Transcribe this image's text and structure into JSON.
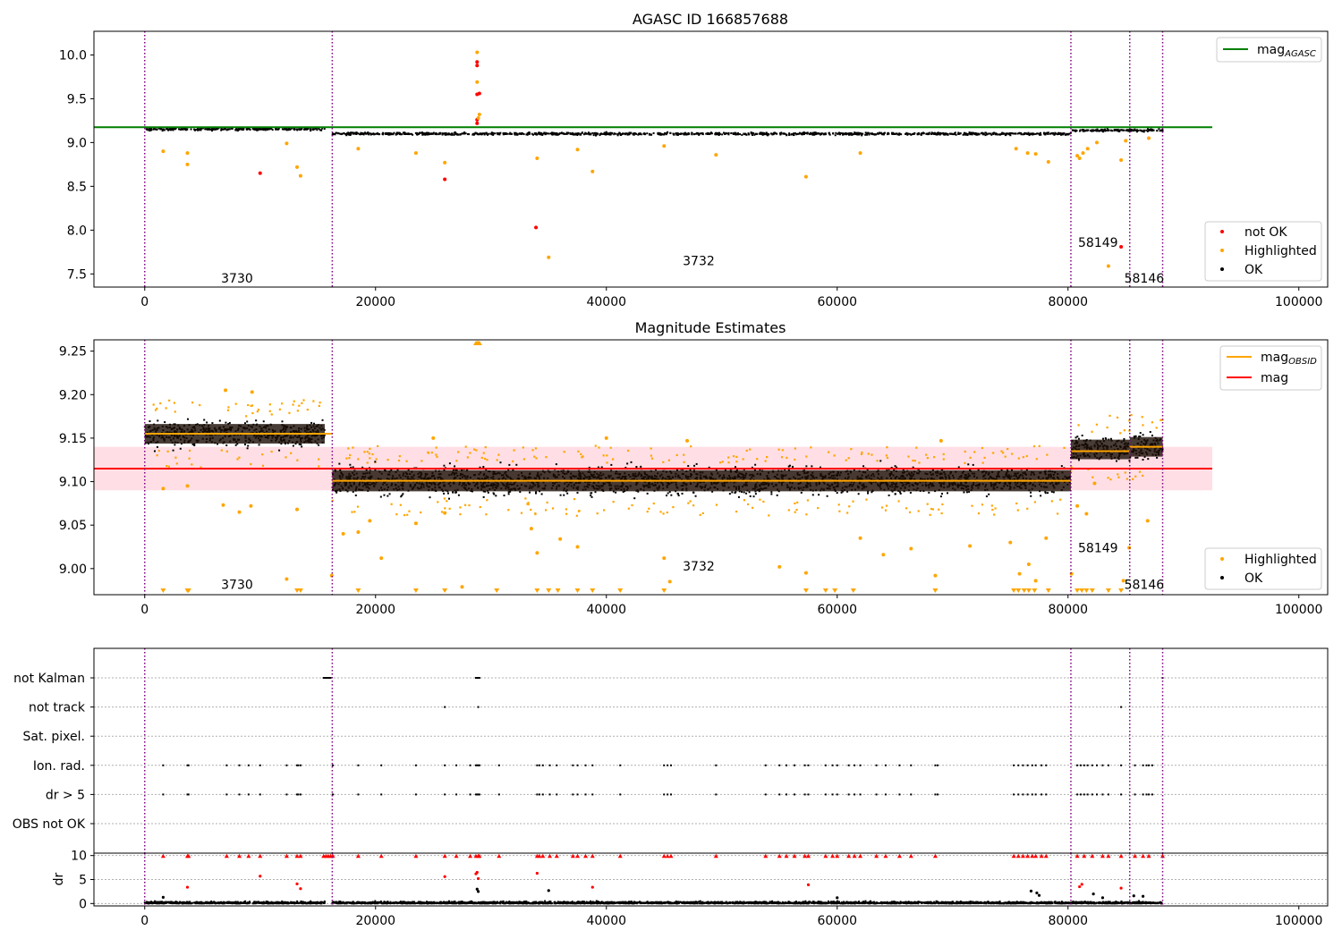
{
  "figure": {
    "title": "AGASC ID 166857688"
  },
  "obs_boundaries": [
    0,
    16250,
    80250,
    85350,
    88200
  ],
  "obsid_labels": [
    {
      "text": "3730",
      "x": 8000,
      "y": 7.45,
      "panel": 0
    },
    {
      "text": "3732",
      "x": 48000,
      "y": 7.65,
      "panel": 0
    },
    {
      "text": "58149",
      "x": 82600,
      "y": 7.86,
      "panel": 0
    },
    {
      "text": "58146",
      "x": 86600,
      "y": 7.45,
      "panel": 0
    },
    {
      "text": "3730",
      "x": 8000,
      "y": 8.982,
      "panel": 1
    },
    {
      "text": "3732",
      "x": 48000,
      "y": 9.003,
      "panel": 1
    },
    {
      "text": "58149",
      "x": 82600,
      "y": 9.024,
      "panel": 1
    },
    {
      "text": "58146",
      "x": 86600,
      "y": 8.982,
      "panel": 1
    }
  ],
  "chart_data": [
    {
      "type": "scatter",
      "title": "AGASC ID 166857688",
      "xlim": [
        -4400,
        102500
      ],
      "ylim": [
        7.35,
        10.27
      ],
      "xticks": [
        0,
        20000,
        40000,
        60000,
        80000,
        100000
      ],
      "yticks": [
        7.5,
        8.0,
        8.5,
        9.0,
        9.5,
        10.0
      ],
      "ytick_labels": [
        "7.5",
        "8.0",
        "8.5",
        "9.0",
        "9.5",
        "10.0"
      ],
      "legend_upper": [
        {
          "label": "mag",
          "sub": "AGASC",
          "color": "#008000",
          "kind": "line"
        }
      ],
      "legend_lower": [
        {
          "label": "not OK",
          "color": "#ff0000",
          "kind": "dot"
        },
        {
          "label": "Highlighted",
          "color": "#ffa500",
          "kind": "dot"
        },
        {
          "label": "OK",
          "color": "#000000",
          "kind": "dot"
        }
      ],
      "lines": [
        {
          "name": "mag AGASC",
          "color": "#008000",
          "x": [
            -4400,
            92500
          ],
          "y": [
            9.175,
            9.175
          ]
        }
      ],
      "bands": [
        {
          "x": [
            0,
            15600
          ],
          "y": 9.153,
          "spread": 0.025
        },
        {
          "x": [
            16250,
            80250
          ],
          "y": 9.1,
          "spread": 0.025
        },
        {
          "x": [
            80250,
            88200
          ],
          "y": 9.14,
          "spread": 0.025
        }
      ],
      "points": [
        {
          "x": 10000,
          "y": 8.65,
          "c": "#ff0000"
        },
        {
          "x": 26000,
          "y": 8.58,
          "c": "#ff0000"
        },
        {
          "x": 28800,
          "y": 9.88,
          "c": "#ff0000"
        },
        {
          "x": 28800,
          "y": 9.92,
          "c": "#ff0000"
        },
        {
          "x": 28800,
          "y": 9.55,
          "c": "#ff0000"
        },
        {
          "x": 29000,
          "y": 9.56,
          "c": "#ff0000"
        },
        {
          "x": 28800,
          "y": 9.26,
          "c": "#ff0000"
        },
        {
          "x": 28800,
          "y": 9.22,
          "c": "#ff0000"
        },
        {
          "x": 33900,
          "y": 8.03,
          "c": "#ff0000"
        },
        {
          "x": 84600,
          "y": 7.81,
          "c": "#ff0000"
        },
        {
          "x": 28800,
          "y": 10.03,
          "c": "#ffa500"
        },
        {
          "x": 28800,
          "y": 9.69,
          "c": "#ffa500"
        },
        {
          "x": 29000,
          "y": 9.32,
          "c": "#ffa500"
        },
        {
          "x": 28900,
          "y": 9.28,
          "c": "#ffa500"
        },
        {
          "x": 1600,
          "y": 8.9,
          "c": "#ffa500"
        },
        {
          "x": 3700,
          "y": 8.75,
          "c": "#ffa500"
        },
        {
          "x": 3700,
          "y": 8.88,
          "c": "#ffa500"
        },
        {
          "x": 12300,
          "y": 8.99,
          "c": "#ffa500"
        },
        {
          "x": 13200,
          "y": 8.72,
          "c": "#ffa500"
        },
        {
          "x": 13500,
          "y": 8.62,
          "c": "#ffa500"
        },
        {
          "x": 18500,
          "y": 8.93,
          "c": "#ffa500"
        },
        {
          "x": 23500,
          "y": 8.88,
          "c": "#ffa500"
        },
        {
          "x": 26000,
          "y": 8.77,
          "c": "#ffa500"
        },
        {
          "x": 34000,
          "y": 8.82,
          "c": "#ffa500"
        },
        {
          "x": 35000,
          "y": 7.69,
          "c": "#ffa500"
        },
        {
          "x": 37500,
          "y": 8.92,
          "c": "#ffa500"
        },
        {
          "x": 38800,
          "y": 8.67,
          "c": "#ffa500"
        },
        {
          "x": 45000,
          "y": 8.96,
          "c": "#ffa500"
        },
        {
          "x": 49500,
          "y": 8.86,
          "c": "#ffa500"
        },
        {
          "x": 57300,
          "y": 8.61,
          "c": "#ffa500"
        },
        {
          "x": 62000,
          "y": 8.88,
          "c": "#ffa500"
        },
        {
          "x": 75500,
          "y": 8.93,
          "c": "#ffa500"
        },
        {
          "x": 76500,
          "y": 8.88,
          "c": "#ffa500"
        },
        {
          "x": 77200,
          "y": 8.87,
          "c": "#ffa500"
        },
        {
          "x": 78300,
          "y": 8.78,
          "c": "#ffa500"
        },
        {
          "x": 80800,
          "y": 8.85,
          "c": "#ffa500"
        },
        {
          "x": 81000,
          "y": 8.82,
          "c": "#ffa500"
        },
        {
          "x": 81300,
          "y": 8.88,
          "c": "#ffa500"
        },
        {
          "x": 81700,
          "y": 8.93,
          "c": "#ffa500"
        },
        {
          "x": 82500,
          "y": 9.0,
          "c": "#ffa500"
        },
        {
          "x": 84600,
          "y": 8.8,
          "c": "#ffa500"
        },
        {
          "x": 85000,
          "y": 9.02,
          "c": "#ffa500"
        },
        {
          "x": 83500,
          "y": 7.59,
          "c": "#ffa500"
        },
        {
          "x": 87000,
          "y": 9.05,
          "c": "#ffa500"
        }
      ]
    },
    {
      "type": "scatter",
      "title": "Magnitude Estimates",
      "xlim": [
        -4400,
        102500
      ],
      "ylim": [
        8.97,
        9.263
      ],
      "xticks": [
        0,
        20000,
        40000,
        60000,
        80000,
        100000
      ],
      "yticks": [
        9.0,
        9.05,
        9.1,
        9.15,
        9.2,
        9.25
      ],
      "ytick_labels": [
        "9.00",
        "9.05",
        "9.10",
        "9.15",
        "9.20",
        "9.25"
      ],
      "legend_upper": [
        {
          "label": "mag",
          "sub": "OBSID",
          "color": "#ffa500",
          "kind": "line"
        },
        {
          "label": "mag",
          "sub": "",
          "color": "#ff0000",
          "kind": "line"
        }
      ],
      "legend_lower": [
        {
          "label": "Highlighted",
          "color": "#ffa500",
          "kind": "dot"
        },
        {
          "label": "OK",
          "color": "#000000",
          "kind": "dot"
        }
      ],
      "mag": {
        "value": 9.115,
        "band": [
          9.09,
          9.14
        ],
        "x": [
          -4400,
          92500
        ]
      },
      "obsid_mags": [
        {
          "x": [
            0,
            16250
          ],
          "y": 9.155
        },
        {
          "x": [
            16250,
            80250
          ],
          "y": 9.101
        },
        {
          "x": [
            80250,
            85350
          ],
          "y": 9.135
        },
        {
          "x": [
            85350,
            88200
          ],
          "y": 9.14
        }
      ],
      "bands": [
        {
          "x": [
            0,
            15600
          ],
          "y": 9.155,
          "spread": 0.025
        },
        {
          "x": [
            16250,
            80250
          ],
          "y": 9.101,
          "spread": 0.027
        },
        {
          "x": [
            80250,
            85350
          ],
          "y": 9.137,
          "spread": 0.025
        },
        {
          "x": [
            85350,
            88200
          ],
          "y": 9.14,
          "spread": 0.025
        }
      ],
      "triangles_low_x": [
        1600,
        3700,
        3800,
        13200,
        13500,
        18500,
        23500,
        26000,
        30500,
        34000,
        35000,
        35800,
        37500,
        38800,
        41200,
        45000,
        57300,
        59000,
        59800,
        61400,
        68500,
        75300,
        75700,
        76200,
        76600,
        77100,
        78300,
        80800,
        81200,
        81600,
        82100,
        83500,
        84600
      ],
      "triangles_high_x": [
        28700,
        28800,
        28900,
        29000
      ],
      "points": [
        {
          "x": 1600,
          "y": 9.092
        },
        {
          "x": 3700,
          "y": 9.095
        },
        {
          "x": 6800,
          "y": 9.073
        },
        {
          "x": 8200,
          "y": 9.065
        },
        {
          "x": 9200,
          "y": 9.072
        },
        {
          "x": 12300,
          "y": 8.988
        },
        {
          "x": 13200,
          "y": 9.068
        },
        {
          "x": 16200,
          "y": 8.992
        },
        {
          "x": 17200,
          "y": 9.04
        },
        {
          "x": 18500,
          "y": 9.042
        },
        {
          "x": 19500,
          "y": 9.055
        },
        {
          "x": 20500,
          "y": 9.012
        },
        {
          "x": 23500,
          "y": 9.052
        },
        {
          "x": 26000,
          "y": 9.064
        },
        {
          "x": 27500,
          "y": 8.979
        },
        {
          "x": 33500,
          "y": 9.046
        },
        {
          "x": 34000,
          "y": 9.018
        },
        {
          "x": 36000,
          "y": 9.034
        },
        {
          "x": 37500,
          "y": 9.025
        },
        {
          "x": 45000,
          "y": 9.012
        },
        {
          "x": 45500,
          "y": 8.985
        },
        {
          "x": 55000,
          "y": 9.002
        },
        {
          "x": 57300,
          "y": 8.995
        },
        {
          "x": 62000,
          "y": 9.035
        },
        {
          "x": 64000,
          "y": 9.016
        },
        {
          "x": 66400,
          "y": 9.023
        },
        {
          "x": 68500,
          "y": 8.992
        },
        {
          "x": 71500,
          "y": 9.026
        },
        {
          "x": 75000,
          "y": 9.03
        },
        {
          "x": 75800,
          "y": 8.994
        },
        {
          "x": 76600,
          "y": 9.005
        },
        {
          "x": 77200,
          "y": 8.986
        },
        {
          "x": 78100,
          "y": 9.035
        },
        {
          "x": 80300,
          "y": 8.994
        },
        {
          "x": 80800,
          "y": 9.072
        },
        {
          "x": 81600,
          "y": 9.063
        },
        {
          "x": 82300,
          "y": 9.098
        },
        {
          "x": 84800,
          "y": 8.986
        },
        {
          "x": 85300,
          "y": 9.024
        },
        {
          "x": 86900,
          "y": 9.055
        },
        {
          "x": 25000,
          "y": 9.15
        },
        {
          "x": 40000,
          "y": 9.15
        },
        {
          "x": 47000,
          "y": 9.147
        },
        {
          "x": 69000,
          "y": 9.147
        },
        {
          "x": 7000,
          "y": 9.205
        },
        {
          "x": 9300,
          "y": 9.203
        }
      ]
    },
    {
      "type": "scatter",
      "title": "",
      "xlim": [
        -4400,
        102500
      ],
      "ylim": [
        -0.5,
        103
      ],
      "xticks": [
        0,
        20000,
        40000,
        60000,
        80000,
        100000
      ],
      "categories": [
        "not Kalman",
        "not track",
        "Sat. pixel.",
        "Ion. rad.",
        "dr > 5",
        "OBS not OK"
      ],
      "flags": {
        "not Kalman": [
          15500,
          15600,
          15700,
          15800,
          15900,
          16000,
          16100,
          28700,
          28800,
          28900,
          29000,
          88200
        ],
        "not track": [
          26000,
          28900,
          84600
        ],
        "Sat. pixel.": [],
        "Ion. rad.": [
          1600,
          3700,
          3800,
          7100,
          8200,
          9000,
          10000,
          12300,
          13200,
          13300,
          13500,
          16300,
          18500,
          20500,
          23500,
          26000,
          27000,
          28200,
          28700,
          28800,
          28900,
          29000,
          30700,
          34000,
          34200,
          34500,
          35100,
          35700,
          37100,
          37500,
          38200,
          38800,
          41200,
          45000,
          45300,
          45600,
          49500,
          53800,
          55000,
          55600,
          56300,
          57200,
          57500,
          59000,
          59600,
          60000,
          61000,
          61500,
          62000,
          63400,
          64200,
          65400,
          66400,
          68500,
          68700,
          75300,
          75700,
          76100,
          76500,
          76900,
          77200,
          77700,
          78100,
          80800,
          81100,
          81400,
          81700,
          82100,
          82500,
          83000,
          83500,
          84600,
          85800,
          86500,
          86800,
          87000,
          87300
        ],
        "dr > 5": [
          1600,
          3700,
          3800,
          7100,
          8200,
          9000,
          10000,
          12300,
          13200,
          13300,
          13500,
          16300,
          18500,
          20500,
          23500,
          26000,
          27000,
          28200,
          28700,
          28800,
          28900,
          29000,
          30700,
          34000,
          34200,
          34500,
          35100,
          35700,
          37100,
          37500,
          38200,
          38800,
          41200,
          45000,
          45300,
          45600,
          49500,
          53800,
          55000,
          55600,
          56300,
          57200,
          57500,
          59000,
          59600,
          60000,
          61000,
          61500,
          62000,
          63400,
          64200,
          65400,
          66400,
          68500,
          68700,
          75300,
          75700,
          76100,
          76500,
          76900,
          77200,
          77700,
          78100,
          80800,
          81100,
          81400,
          81700,
          82100,
          82500,
          83000,
          83500,
          84600,
          85800,
          86500,
          86800,
          87000,
          87300
        ],
        "OBS not OK": []
      },
      "dr_ylabel": "dr",
      "dr_yticks": [
        0,
        5,
        10
      ],
      "dr_ylim": [
        -0.5,
        10.5
      ],
      "dr_red_x": [
        1600,
        3700,
        3800,
        7100,
        8200,
        9000,
        10000,
        12300,
        13200,
        13500,
        15500,
        15700,
        15900,
        16100,
        16300,
        18500,
        20500,
        23500,
        26000,
        27000,
        28200,
        28700,
        28900,
        29000,
        30700,
        34000,
        34200,
        34500,
        35100,
        35700,
        37100,
        37500,
        38200,
        38800,
        41200,
        45000,
        45300,
        45600,
        49500,
        53800,
        55000,
        55600,
        56300,
        57200,
        57500,
        59000,
        59600,
        60000,
        61000,
        61500,
        62000,
        63400,
        64200,
        65400,
        66400,
        68500,
        75300,
        75700,
        76100,
        76500,
        76900,
        77200,
        77700,
        78100,
        80800,
        81400,
        82100,
        83000,
        83500,
        84600,
        85800,
        86500,
        87000,
        88200
      ],
      "dr_extra": [
        {
          "x": 10000,
          "y": 5.7,
          "c": "#ff0000"
        },
        {
          "x": 26000,
          "y": 5.6,
          "c": "#ff0000"
        },
        {
          "x": 28800,
          "y": 6.5,
          "c": "#ff0000"
        },
        {
          "x": 28900,
          "y": 5.2,
          "c": "#ff0000"
        },
        {
          "x": 28700,
          "y": 6.2,
          "c": "#ff0000"
        },
        {
          "x": 34000,
          "y": 6.3,
          "c": "#ff0000"
        },
        {
          "x": 3700,
          "y": 3.4,
          "c": "#ff0000"
        },
        {
          "x": 13200,
          "y": 4.1,
          "c": "#ff0000"
        },
        {
          "x": 13500,
          "y": 3.1,
          "c": "#ff0000"
        },
        {
          "x": 81200,
          "y": 4.0,
          "c": "#ff0000"
        },
        {
          "x": 81000,
          "y": 3.5,
          "c": "#ff0000"
        },
        {
          "x": 57500,
          "y": 3.9,
          "c": "#ff0000"
        },
        {
          "x": 38800,
          "y": 3.4,
          "c": "#ff0000"
        },
        {
          "x": 84600,
          "y": 3.2,
          "c": "#ff0000"
        },
        {
          "x": 28800,
          "y": 3.0,
          "c": "#000000"
        },
        {
          "x": 28900,
          "y": 2.5,
          "c": "#000000"
        },
        {
          "x": 35000,
          "y": 2.7,
          "c": "#000000"
        },
        {
          "x": 76800,
          "y": 2.6,
          "c": "#000000"
        },
        {
          "x": 77300,
          "y": 2.2,
          "c": "#000000"
        },
        {
          "x": 77500,
          "y": 1.7,
          "c": "#000000"
        },
        {
          "x": 82200,
          "y": 2.0,
          "c": "#000000"
        },
        {
          "x": 83000,
          "y": 1.2,
          "c": "#000000"
        },
        {
          "x": 85700,
          "y": 1.6,
          "c": "#000000"
        },
        {
          "x": 86500,
          "y": 1.5,
          "c": "#000000"
        },
        {
          "x": 60000,
          "y": 1.2,
          "c": "#000000"
        },
        {
          "x": 1600,
          "y": 1.3,
          "c": "#000000"
        }
      ]
    }
  ]
}
